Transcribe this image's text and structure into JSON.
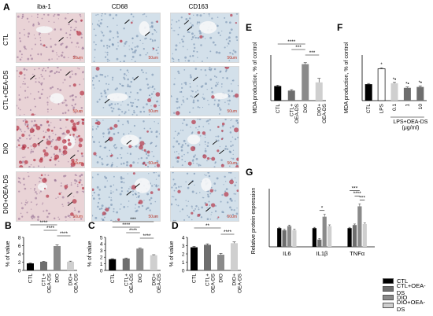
{
  "panels": {
    "A": "A",
    "B": "B",
    "C": "C",
    "D": "D",
    "E": "E",
    "F": "F",
    "G": "G"
  },
  "micrographs": {
    "columns": [
      "iba-1",
      "CD68",
      "CD163"
    ],
    "rows": [
      "CTL",
      "CTL+OEA-DS",
      "DIO",
      "DIO+OEA-DS"
    ],
    "scale_bar": "50um"
  },
  "colors": {
    "CTL": "#000000",
    "CTL+OEA-DS": "#6e6e6e",
    "DIO": "#8a8a8a",
    "DIO+OEA-DS": "#cfcfcf",
    "LPS": "#ffffff"
  },
  "chart_data": [
    {
      "id": "B",
      "type": "bar",
      "categories": [
        "CTL",
        "CTL+\nOEA-DS",
        "DIO",
        "DIO+\nOEA-DS"
      ],
      "values": [
        1.7,
        2.1,
        5.9,
        2.1
      ],
      "errors": [
        0.1,
        0.1,
        0.3,
        0.15
      ],
      "ylabel": "% of value",
      "ylim": [
        0,
        8
      ],
      "yticks": [
        0,
        2,
        4,
        6,
        8
      ],
      "significance": [
        {
          "from": 0,
          "to": 2,
          "label": "****"
        },
        {
          "from": 1,
          "to": 2,
          "label": "****"
        },
        {
          "from": 2,
          "to": 3,
          "label": "****"
        }
      ]
    },
    {
      "id": "C",
      "type": "bar",
      "categories": [
        "CTL",
        "CTL+\nOEA-DS",
        "DIO",
        "DIO+\nOEA-DS"
      ],
      "values": [
        1.7,
        1.8,
        3.3,
        2.3
      ],
      "errors": [
        0.08,
        0.08,
        0.08,
        0.08
      ],
      "ylabel": "% of value",
      "ylim": [
        0,
        5
      ],
      "yticks": [
        0,
        1,
        2,
        3,
        4,
        5
      ],
      "significance": [
        {
          "from": 0,
          "to": 3,
          "label": "***"
        },
        {
          "from": 0,
          "to": 2,
          "label": "****"
        },
        {
          "from": 1,
          "to": 2,
          "label": "****"
        },
        {
          "from": 2,
          "to": 3,
          "label": "****"
        }
      ]
    },
    {
      "id": "D",
      "type": "bar",
      "categories": [
        "CTL",
        "CTL+\nOEA-DS",
        "DIO",
        "DIO+\nOEA-DS"
      ],
      "values": [
        2.8,
        3.1,
        1.9,
        3.3
      ],
      "errors": [
        0.12,
        0.12,
        0.15,
        0.15
      ],
      "ylabel": "% of value",
      "ylim": [
        0,
        4
      ],
      "yticks": [
        0,
        1,
        2,
        3,
        4
      ],
      "significance": [
        {
          "from": 0,
          "to": 2,
          "label": "**"
        },
        {
          "from": 2,
          "to": 3,
          "label": "****"
        }
      ]
    },
    {
      "id": "E",
      "type": "bar",
      "categories": [
        "CTL",
        "CTL+\nOEA-DS",
        "DIO",
        "DIO+\nOEA-DS"
      ],
      "values": [
        80,
        55,
        200,
        100
      ],
      "errors": [
        5,
        5,
        8,
        22
      ],
      "ylabel": "MDA production, % of control",
      "ylim": [
        0,
        250
      ],
      "yticks": [],
      "significance": [
        {
          "from": 0,
          "to": 2,
          "label": "****"
        },
        {
          "from": 1,
          "to": 2,
          "label": "***"
        },
        {
          "from": 2,
          "to": 3,
          "label": "***"
        }
      ]
    },
    {
      "id": "F",
      "type": "bar",
      "categories": [
        "CTL",
        "LPS",
        "0.1",
        "1",
        "10"
      ],
      "values": [
        90,
        175,
        95,
        70,
        75
      ],
      "errors": [
        4,
        5,
        5,
        5,
        6
      ],
      "point_labels": [
        "",
        "*",
        "*•",
        "*•",
        "*•"
      ],
      "group_label": "LPS+OEA-DS\n(μg/ml)",
      "ylabel": "MDA production, % of control",
      "ylim": [
        0,
        250
      ],
      "yticks": []
    },
    {
      "id": "G",
      "type": "bar",
      "categories": [
        "IL6",
        "IL1β",
        "TNFα"
      ],
      "series": [
        {
          "name": "CTL",
          "values": [
            0.9,
            0.9,
            0.9
          ],
          "errors": [
            0.04,
            0.04,
            0.04
          ]
        },
        {
          "name": "CTL+OEA-DS",
          "values": [
            0.8,
            0.35,
            1.05
          ],
          "errors": [
            0.05,
            0.05,
            0.05
          ]
        },
        {
          "name": "DIO",
          "values": [
            1.0,
            1.45,
            1.95
          ],
          "errors": [
            0.05,
            0.12,
            0.12
          ]
        },
        {
          "name": "DIO+OEA-DS",
          "values": [
            0.8,
            1.0,
            1.1
          ],
          "errors": [
            0.05,
            0.06,
            0.05
          ]
        }
      ],
      "ylabel": "Relative protein expression",
      "ylim": [
        0,
        2.8
      ],
      "yticks": [],
      "significance": [
        {
          "group": 1,
          "from": 1,
          "to": 2,
          "label": "*"
        },
        {
          "group": 2,
          "from": 0,
          "to": 2,
          "label": "***"
        },
        {
          "group": 2,
          "from": 1,
          "to": 2,
          "label": "****"
        },
        {
          "group": 2,
          "from": 2,
          "to": 3,
          "label": "***"
        }
      ]
    }
  ]
}
